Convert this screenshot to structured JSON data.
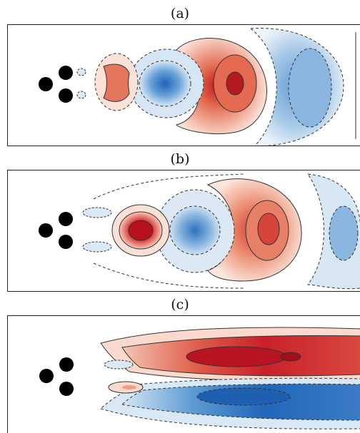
{
  "figure": {
    "panels": [
      {
        "label": "(a)",
        "field": "mode-a"
      },
      {
        "label": "(b)",
        "field": "mode-b"
      },
      {
        "label": "(c)",
        "field": "mode-c"
      }
    ],
    "colors": {
      "positive": "#c8102e",
      "positive_light": "#f4b9a4",
      "negative": "#1f63b8",
      "negative_light": "#c7dcee",
      "cylinder": "#000000",
      "contour": "#333333"
    }
  }
}
